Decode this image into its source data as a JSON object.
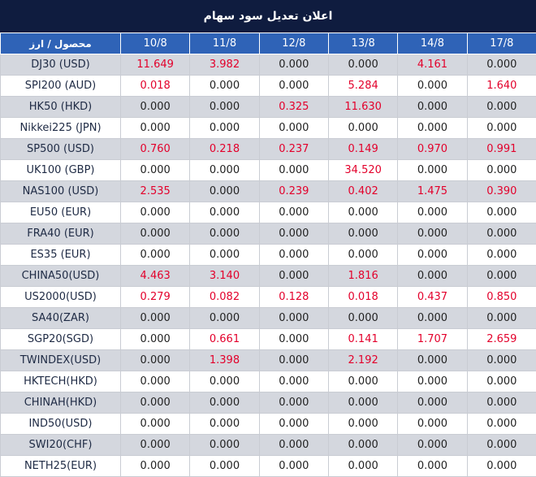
{
  "title": "اعلان تعدیل سود سهام",
  "header": {
    "instrument_label": "محصول / ارز",
    "dates": [
      "10/8",
      "11/8",
      "12/8",
      "13/8",
      "14/8",
      "17/8"
    ]
  },
  "colors": {
    "title_bg": "#0f1c3f",
    "header_bg": "#2f63b7",
    "shaded_row_bg": "#d4d7de",
    "nonzero_value": "#e3002b",
    "zero_value": "#222222"
  },
  "rows": [
    {
      "symbol": "DJ30 (USD)",
      "values": [
        "11.649",
        "3.982",
        "0.000",
        "0.000",
        "4.161",
        "0.000"
      ]
    },
    {
      "symbol": "SPI200 (AUD)",
      "values": [
        "0.018",
        "0.000",
        "0.000",
        "5.284",
        "0.000",
        "1.640"
      ]
    },
    {
      "symbol": "HK50 (HKD)",
      "values": [
        "0.000",
        "0.000",
        "0.325",
        "11.630",
        "0.000",
        "0.000"
      ]
    },
    {
      "symbol": "Nikkei225 (JPN)",
      "values": [
        "0.000",
        "0.000",
        "0.000",
        "0.000",
        "0.000",
        "0.000"
      ]
    },
    {
      "symbol": "SP500 (USD)",
      "values": [
        "0.760",
        "0.218",
        "0.237",
        "0.149",
        "0.970",
        "0.991"
      ]
    },
    {
      "symbol": "UK100 (GBP)",
      "values": [
        "0.000",
        "0.000",
        "0.000",
        "34.520",
        "0.000",
        "0.000"
      ]
    },
    {
      "symbol": "NAS100 (USD)",
      "values": [
        "2.535",
        "0.000",
        "0.239",
        "0.402",
        "1.475",
        "0.390"
      ]
    },
    {
      "symbol": "EU50 (EUR)",
      "values": [
        "0.000",
        "0.000",
        "0.000",
        "0.000",
        "0.000",
        "0.000"
      ]
    },
    {
      "symbol": "FRA40 (EUR)",
      "values": [
        "0.000",
        "0.000",
        "0.000",
        "0.000",
        "0.000",
        "0.000"
      ]
    },
    {
      "symbol": "ES35 (EUR)",
      "values": [
        "0.000",
        "0.000",
        "0.000",
        "0.000",
        "0.000",
        "0.000"
      ]
    },
    {
      "symbol": "CHINA50(USD)",
      "values": [
        "4.463",
        "3.140",
        "0.000",
        "1.816",
        "0.000",
        "0.000"
      ]
    },
    {
      "symbol": "US2000(USD)",
      "values": [
        "0.279",
        "0.082",
        "0.128",
        "0.018",
        "0.437",
        "0.850"
      ]
    },
    {
      "symbol": "SA40(ZAR)",
      "values": [
        "0.000",
        "0.000",
        "0.000",
        "0.000",
        "0.000",
        "0.000"
      ]
    },
    {
      "symbol": "SGP20(SGD)",
      "values": [
        "0.000",
        "0.661",
        "0.000",
        "0.141",
        "1.707",
        "2.659"
      ]
    },
    {
      "symbol": "TWINDEX(USD)",
      "values": [
        "0.000",
        "1.398",
        "0.000",
        "2.192",
        "0.000",
        "0.000"
      ]
    },
    {
      "symbol": "HKTECH(HKD)",
      "values": [
        "0.000",
        "0.000",
        "0.000",
        "0.000",
        "0.000",
        "0.000"
      ]
    },
    {
      "symbol": "CHINAH(HKD)",
      "values": [
        "0.000",
        "0.000",
        "0.000",
        "0.000",
        "0.000",
        "0.000"
      ]
    },
    {
      "symbol": "IND50(USD)",
      "values": [
        "0.000",
        "0.000",
        "0.000",
        "0.000",
        "0.000",
        "0.000"
      ]
    },
    {
      "symbol": "SWI20(CHF)",
      "values": [
        "0.000",
        "0.000",
        "0.000",
        "0.000",
        "0.000",
        "0.000"
      ]
    },
    {
      "symbol": "NETH25(EUR)",
      "values": [
        "0.000",
        "0.000",
        "0.000",
        "0.000",
        "0.000",
        "0.000"
      ]
    }
  ]
}
